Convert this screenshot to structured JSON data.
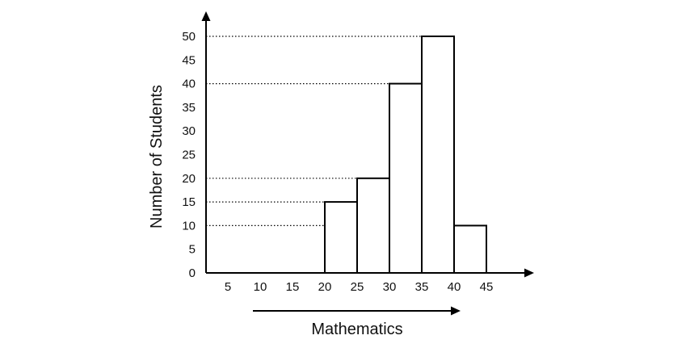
{
  "chart_data": {
    "type": "bar",
    "title": "",
    "xlabel": "Mathematics",
    "ylabel": "Number of Students",
    "x_ticks": [
      "5",
      "10",
      "15",
      "20",
      "25",
      "30",
      "35",
      "40",
      "45"
    ],
    "y_ticks": [
      "0",
      "5",
      "10",
      "15",
      "20",
      "25",
      "30",
      "35",
      "40",
      "45",
      "50"
    ],
    "bins": [
      {
        "from": 20,
        "to": 25,
        "value": 15
      },
      {
        "from": 25,
        "to": 30,
        "value": 20
      },
      {
        "from": 30,
        "to": 35,
        "value": 40
      },
      {
        "from": 35,
        "to": 40,
        "value": 50
      },
      {
        "from": 40,
        "to": 45,
        "value": 10
      }
    ],
    "reference_lines": [
      50,
      40,
      20,
      15,
      10
    ],
    "ylim": [
      0,
      50
    ],
    "grid": false,
    "colors": {
      "bar_fill": "#ffffff",
      "bar_stroke": "#000000",
      "axis": "#000000"
    }
  }
}
